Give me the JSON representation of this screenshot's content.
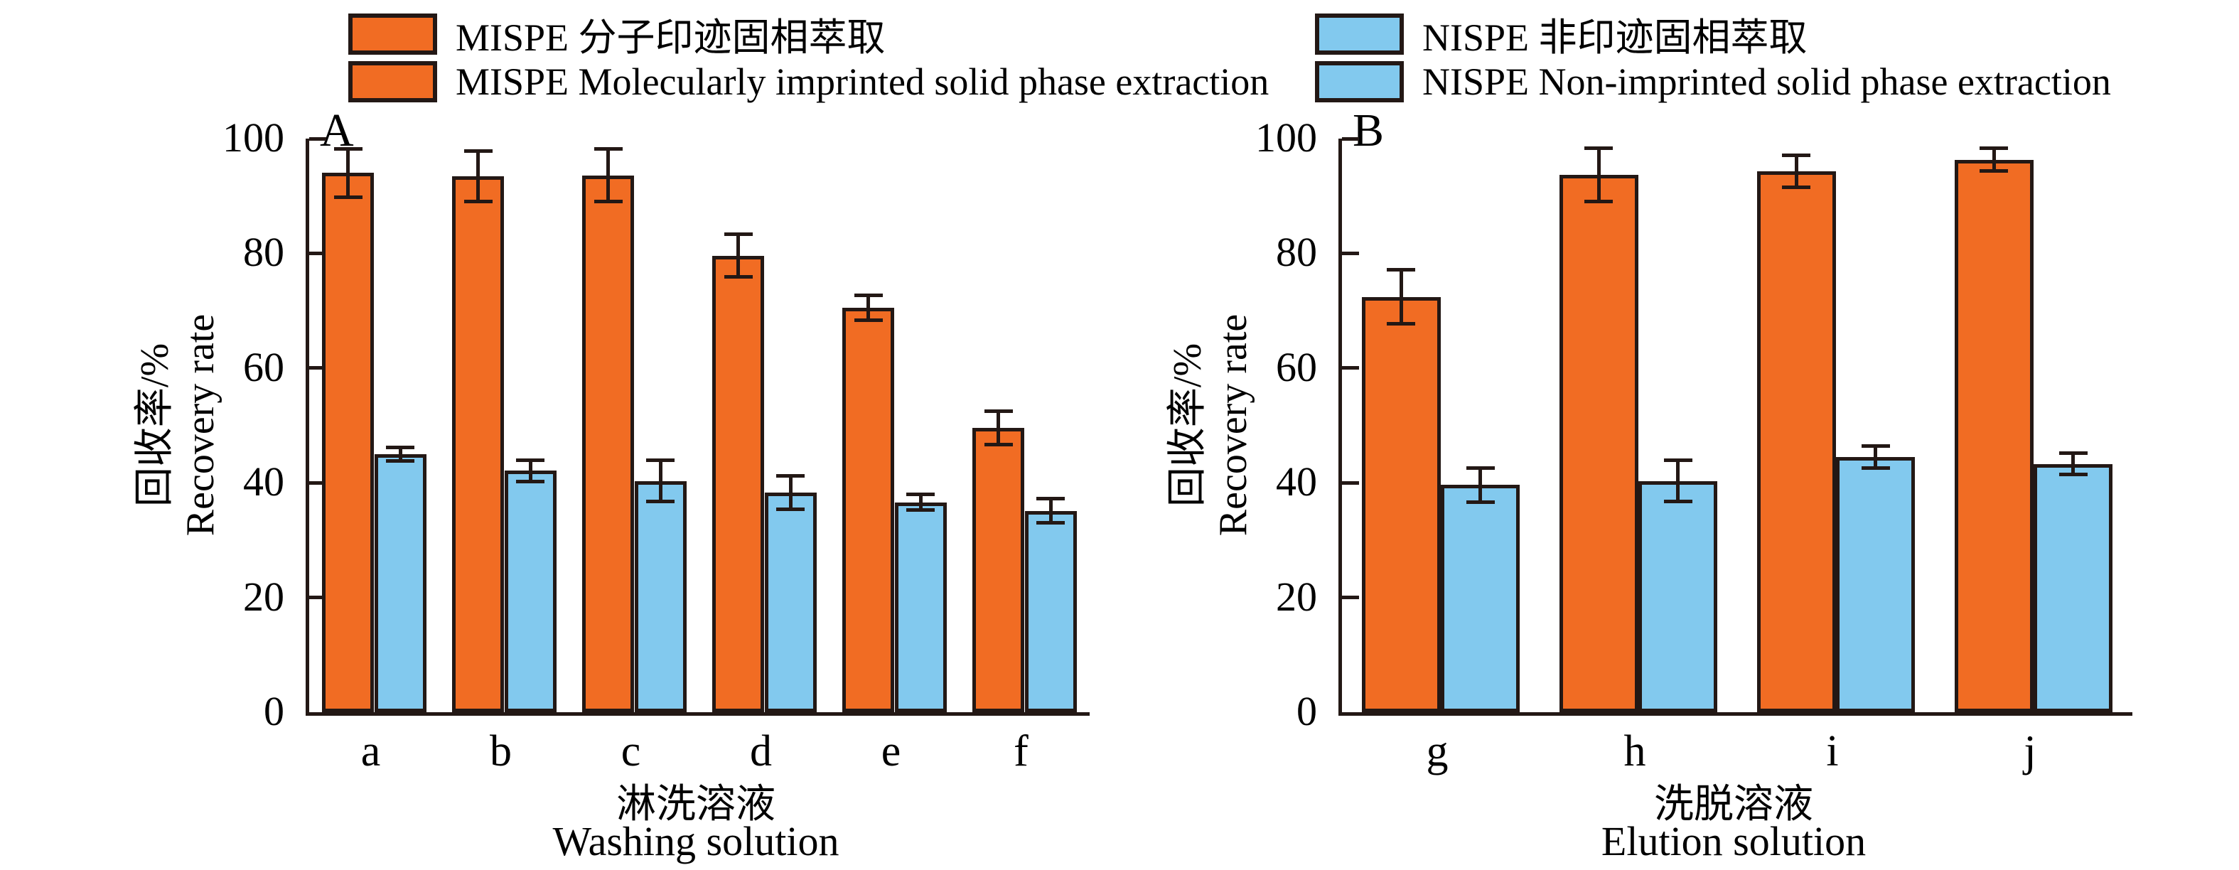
{
  "legend": {
    "items": [
      {
        "series": "MISPE",
        "color": "#F16C23",
        "label": "MISPE 分子印迹固相萃取"
      },
      {
        "series": "MISPE",
        "color": "#F16C23",
        "label": "MISPE Molecularly imprinted solid phase extraction"
      },
      {
        "series": "NISPE",
        "color": "#82C9EE",
        "label": "NISPE 非印迹固相萃取"
      },
      {
        "series": "NISPE",
        "color": "#82C9EE",
        "label": "NISPE Non-imprinted solid phase extraction"
      }
    ]
  },
  "colors": {
    "mispe": "#F16C23",
    "nispe": "#82C9EE",
    "line": "#231815"
  },
  "chart_data": [
    {
      "type": "bar",
      "panel": "A",
      "categories": [
        "a",
        "b",
        "c",
        "d",
        "e",
        "f"
      ],
      "series": [
        {
          "name": "MISPE",
          "color": "#F16C23",
          "values": [
            94.0,
            93.4,
            93.6,
            79.6,
            70.5,
            49.6
          ],
          "errors": [
            4.5,
            4.7,
            4.9,
            4.0,
            2.5,
            3.2
          ]
        },
        {
          "name": "NISPE",
          "color": "#82C9EE",
          "values": [
            45.0,
            42.1,
            40.3,
            38.3,
            36.6,
            35.1
          ],
          "errors": [
            1.5,
            2.2,
            3.9,
            3.2,
            1.7,
            2.4
          ]
        }
      ],
      "xlabel_zh": "淋洗溶液",
      "xlabel_en": "Washing solution",
      "ylabel_zh": "回收率/%",
      "ylabel_en": "Recovery rate",
      "ylim": [
        0,
        100
      ],
      "yticks": [
        0,
        20,
        40,
        60,
        80,
        100
      ],
      "grid": false,
      "legend_position": "top"
    },
    {
      "type": "bar",
      "panel": "B",
      "categories": [
        "g",
        "h",
        "i",
        "j"
      ],
      "series": [
        {
          "name": "MISPE",
          "color": "#F16C23",
          "values": [
            72.4,
            93.7,
            94.3,
            96.3
          ],
          "errors": [
            5.0,
            5.0,
            3.1,
            2.3
          ]
        },
        {
          "name": "NISPE",
          "color": "#82C9EE",
          "values": [
            39.6,
            40.3,
            44.5,
            43.3
          ],
          "errors": [
            3.3,
            3.9,
            2.2,
            2.2
          ]
        }
      ],
      "xlabel_zh": "洗脱溶液",
      "xlabel_en": "Elution solution",
      "ylabel_zh": "回收率/%",
      "ylabel_en": "Recovery rate",
      "ylim": [
        0,
        100
      ],
      "yticks": [
        0,
        20,
        40,
        60,
        80,
        100
      ],
      "grid": false,
      "legend_position": "top"
    }
  ]
}
